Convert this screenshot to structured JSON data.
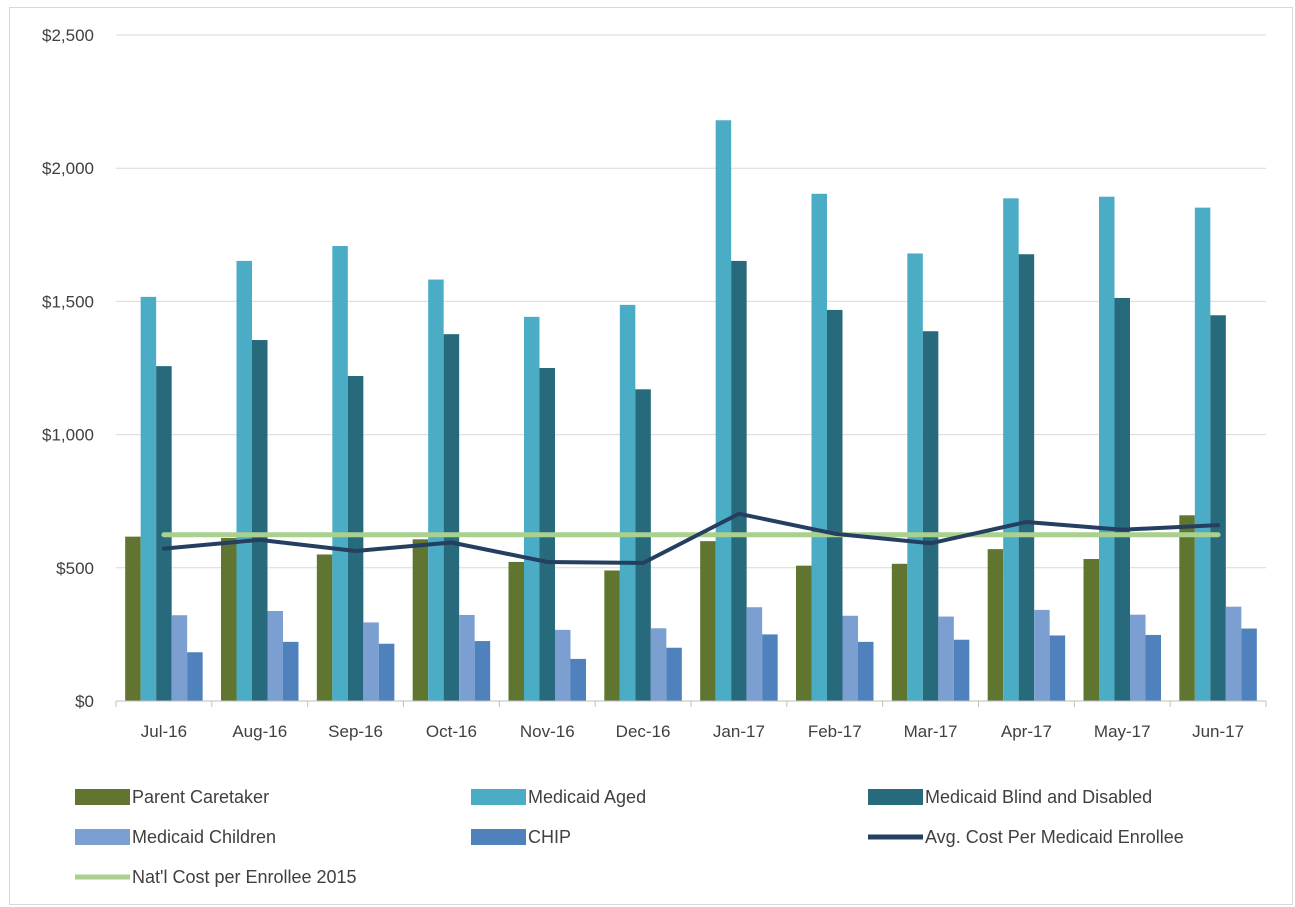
{
  "chart_data": {
    "type": "bar",
    "title": "",
    "xlabel": "",
    "ylabel": "",
    "categories": [
      "Jul-16",
      "Aug-16",
      "Sep-16",
      "Oct-16",
      "Nov-16",
      "Dec-16",
      "Jan-17",
      "Feb-17",
      "Mar-17",
      "Apr-17",
      "May-17",
      "Jun-17"
    ],
    "ylim": [
      0,
      2500
    ],
    "yticks": [
      0,
      500,
      1000,
      1500,
      2000,
      2500
    ],
    "ytick_labels": [
      "$0",
      "$500",
      "$1,000",
      "$1,500",
      "$2,000",
      "$2,500"
    ],
    "grid": true,
    "legend_position": "bottom",
    "series": [
      {
        "name": "Parent Caretaker",
        "kind": "bar",
        "color": "#5f7530",
        "values": [
          617,
          612,
          550,
          607,
          522,
          490,
          600,
          508,
          515,
          570,
          533,
          697
        ]
      },
      {
        "name": "Medicaid Aged",
        "kind": "bar",
        "color": "#4bacc6",
        "values": [
          1517,
          1652,
          1708,
          1582,
          1442,
          1487,
          2180,
          1904,
          1680,
          1887,
          1893,
          1852
        ]
      },
      {
        "name": "Medicaid Blind and Disabled",
        "kind": "bar",
        "color": "#276a7c",
        "values": [
          1257,
          1355,
          1220,
          1377,
          1250,
          1170,
          1652,
          1468,
          1388,
          1677,
          1513,
          1448
        ]
      },
      {
        "name": "Medicaid Children",
        "kind": "bar",
        "color": "#7b9fd1",
        "values": [
          322,
          338,
          295,
          323,
          267,
          273,
          352,
          320,
          317,
          342,
          324,
          354
        ]
      },
      {
        "name": "CHIP",
        "kind": "bar",
        "color": "#4f81bd",
        "values": [
          183,
          222,
          215,
          225,
          158,
          200,
          250,
          222,
          230,
          246,
          248,
          272
        ]
      },
      {
        "name": "Avg. Cost Per Medicaid Enrollee",
        "kind": "line",
        "color": "#243f60",
        "values": [
          572,
          605,
          563,
          595,
          522,
          518,
          703,
          628,
          592,
          672,
          643,
          660
        ]
      },
      {
        "name": "Nat'l Cost per Enrollee 2015",
        "kind": "line",
        "color": "#a9d08e",
        "values": [
          624,
          624,
          624,
          624,
          624,
          624,
          624,
          624,
          624,
          624,
          624,
          624
        ]
      }
    ]
  }
}
